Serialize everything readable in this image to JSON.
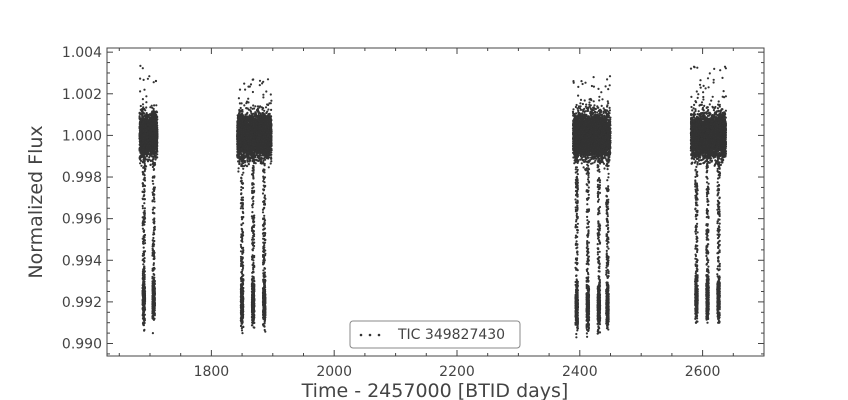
{
  "chart_data": {
    "type": "scatter",
    "xlabel": "Time - 2457000 [BTID days]",
    "ylabel": "Normalized Flux",
    "xlim": [
      1630,
      2700
    ],
    "ylim": [
      0.9894,
      1.0042
    ],
    "x_ticks": [
      1800,
      2000,
      2200,
      2400,
      2600
    ],
    "y_ticks": [
      0.99,
      0.992,
      0.994,
      0.996,
      0.998,
      1.0,
      1.002,
      1.004
    ],
    "x_tick_labels": [
      "1800",
      "2000",
      "2200",
      "2400",
      "2600"
    ],
    "y_tick_labels": [
      "0.990",
      "0.992",
      "0.994",
      "0.996",
      "0.998",
      "1.000",
      "1.002",
      "1.004"
    ],
    "legend": {
      "position": "lower-center",
      "entries": [
        "TIC 349827430"
      ]
    },
    "grid": false,
    "marker_color": "#333333",
    "series": [
      {
        "name": "TIC 349827430",
        "segments": [
          {
            "x_start": 1683,
            "x_end": 1712,
            "baseline": 1.0,
            "scatter": 0.0009,
            "min": 0.9905,
            "max": 1.0036
          },
          {
            "x_start": 1842,
            "x_end": 1898,
            "baseline": 1.0,
            "scatter": 0.0009,
            "min": 0.9905,
            "max": 1.0027
          },
          {
            "x_start": 2389,
            "x_end": 2450,
            "baseline": 1.0,
            "scatter": 0.0009,
            "min": 0.9903,
            "max": 1.0029
          },
          {
            "x_start": 2581,
            "x_end": 2638,
            "baseline": 1.0,
            "scatter": 0.0009,
            "min": 0.991,
            "max": 1.0034
          }
        ],
        "eclipses": [
          {
            "center": 1690,
            "width": 4,
            "depth_flux": 0.9921
          },
          {
            "center": 1706,
            "width": 4,
            "depth_flux": 0.9921
          },
          {
            "center": 1850,
            "width": 4,
            "depth_flux": 0.992
          },
          {
            "center": 1868,
            "width": 4,
            "depth_flux": 0.992
          },
          {
            "center": 1886,
            "width": 4,
            "depth_flux": 0.992
          },
          {
            "center": 2395,
            "width": 4,
            "depth_flux": 0.9918
          },
          {
            "center": 2413,
            "width": 4,
            "depth_flux": 0.9918
          },
          {
            "center": 2431,
            "width": 4,
            "depth_flux": 0.9918
          },
          {
            "center": 2445,
            "width": 4,
            "depth_flux": 0.9918
          },
          {
            "center": 2590,
            "width": 4,
            "depth_flux": 0.9922
          },
          {
            "center": 2608,
            "width": 4,
            "depth_flux": 0.9922
          },
          {
            "center": 2626,
            "width": 4,
            "depth_flux": 0.9922
          }
        ]
      }
    ]
  }
}
